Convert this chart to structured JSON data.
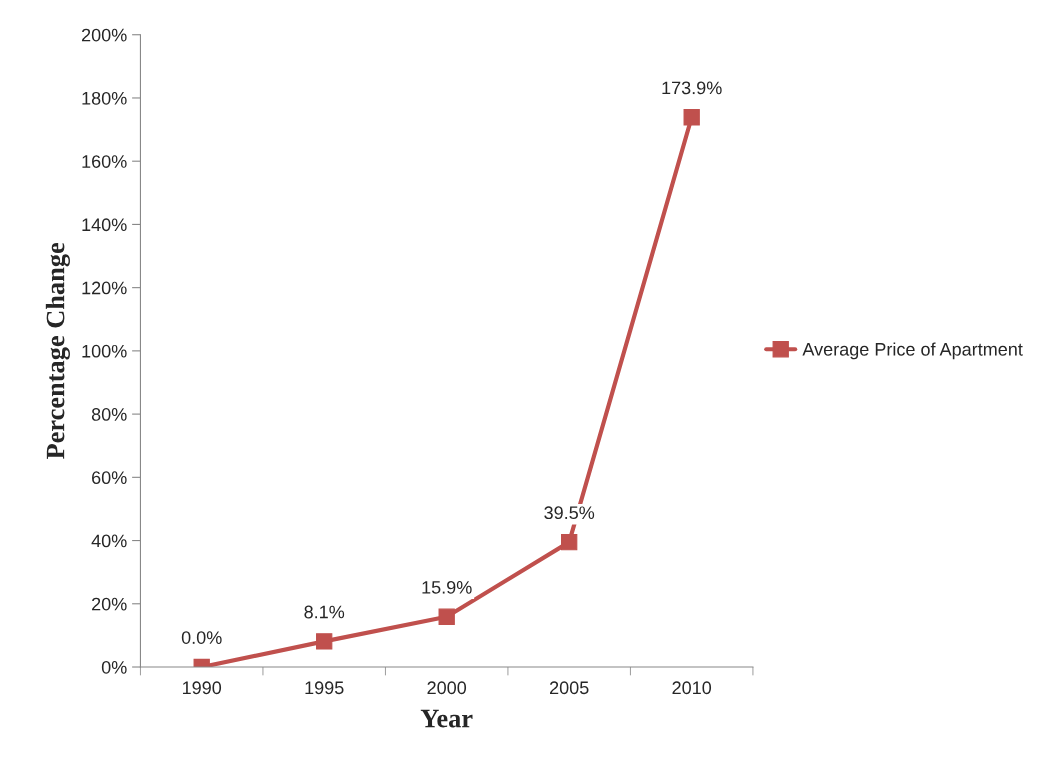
{
  "chart_data": {
    "type": "line",
    "xlabel": "Year",
    "ylabel": "Percentage Change",
    "categories": [
      "1990",
      "1995",
      "2000",
      "2005",
      "2010"
    ],
    "series": [
      {
        "name": "Average Price of Apartment",
        "color": "#c0504d",
        "values": [
          0.0,
          8.1,
          15.9,
          39.5,
          173.9
        ],
        "value_labels": [
          "0.0%",
          "8.1%",
          "15.9%",
          "39.5%",
          "173.9%"
        ]
      }
    ],
    "ylim": [
      0,
      200
    ],
    "yticks": [
      {
        "value": 0,
        "label": "0%"
      },
      {
        "value": 20,
        "label": "20%"
      },
      {
        "value": 40,
        "label": "40%"
      },
      {
        "value": 60,
        "label": "60%"
      },
      {
        "value": 80,
        "label": "80%"
      },
      {
        "value": 100,
        "label": "100%"
      },
      {
        "value": 120,
        "label": "120%"
      },
      {
        "value": 140,
        "label": "140%"
      },
      {
        "value": 160,
        "label": "160%"
      },
      {
        "value": 180,
        "label": "180%"
      },
      {
        "value": 200,
        "label": "200%"
      }
    ],
    "grid": false,
    "legend": "right",
    "marker": "square",
    "line_style": "solid"
  }
}
